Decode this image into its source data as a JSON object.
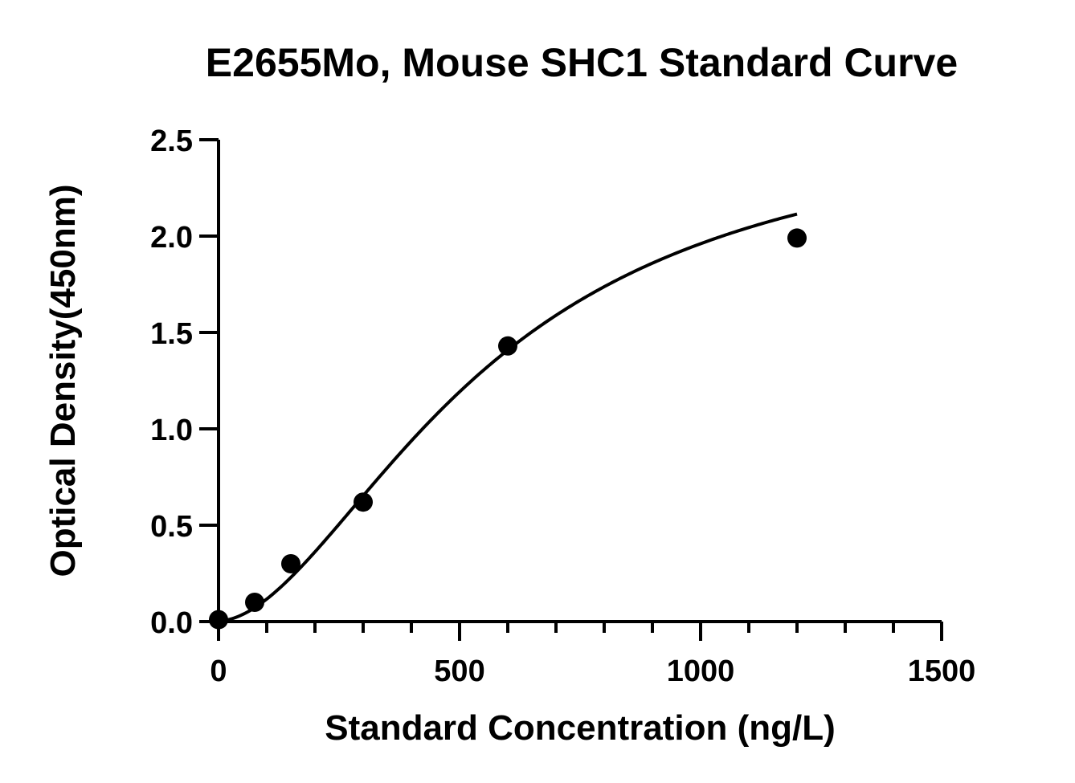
{
  "chart_data": {
    "type": "scatter",
    "title": "E2655Mo, Mouse SHC1 Standard Curve",
    "xlabel": "Standard Concentration (ng/L)",
    "ylabel": "Optical Density(450nm)",
    "xlim": [
      0,
      1500
    ],
    "ylim": [
      0,
      2.5
    ],
    "x_ticks": [
      "0",
      "500",
      "1000",
      "1500"
    ],
    "y_ticks": [
      "0.0",
      "0.5",
      "1.0",
      "1.5",
      "2.0",
      "2.5"
    ],
    "x_tick_values": [
      0,
      500,
      1000,
      1500
    ],
    "y_tick_values": [
      0,
      0.5,
      1.0,
      1.5,
      2.0,
      2.5
    ],
    "x_minor_tick_step": 100,
    "y_minor_tick_step": 0.5,
    "grid": false,
    "legend": "none",
    "series": [
      {
        "x": [
          0,
          75,
          150,
          300,
          600,
          1200
        ],
        "y": [
          0.01,
          0.1,
          0.3,
          0.62,
          1.43,
          1.99
        ],
        "fit": "4PL",
        "fit_params": {
          "A": 0.003,
          "B": 1.8,
          "C": 560,
          "D": 2.65
        }
      }
    ],
    "colors": {
      "marks": "#000000",
      "background": "#ffffff"
    }
  }
}
